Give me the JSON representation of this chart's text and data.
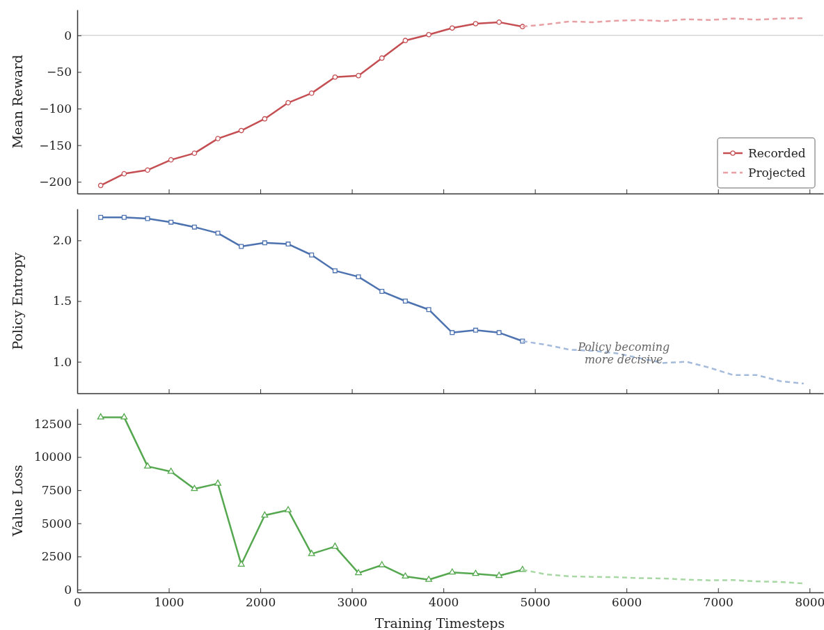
{
  "chart_data": [
    {
      "type": "line",
      "ylabel": "Mean Reward",
      "xlim": [
        0,
        8150
      ],
      "xticks": [
        0,
        1000,
        2000,
        3000,
        4000,
        5000,
        6000,
        7000,
        8000
      ],
      "ylim": [
        -216,
        35
      ],
      "yticks": [
        -200,
        -150,
        -100,
        -50,
        0
      ],
      "tick_labels": "y",
      "legend": "bottom right",
      "grid": false,
      "ref_lines": [
        {
          "axis": "y",
          "value": 0,
          "color": "#c0c0c0"
        }
      ],
      "series": [
        {
          "name": "Recorded",
          "color": "#c44e52",
          "marker": "circle",
          "line_style": "solid",
          "x": [
            256,
            512,
            768,
            1024,
            1280,
            1536,
            1792,
            2048,
            2304,
            2560,
            2816,
            3072,
            3328,
            3584,
            3840,
            4096,
            4352,
            4608,
            4864
          ],
          "values": [
            -205,
            -189,
            -184,
            -170,
            -161,
            -141,
            -130,
            -114,
            -92,
            -79,
            -57,
            -55,
            -31,
            -7,
            1,
            10,
            16,
            18,
            12
          ]
        },
        {
          "name": "Projected",
          "color": "#e8a0a4",
          "marker": "none",
          "line_style": "dashed",
          "x": [
            4864,
            5120,
            5376,
            5632,
            5888,
            6144,
            6400,
            6656,
            6912,
            7168,
            7424,
            7680,
            7936
          ],
          "values": [
            12,
            15,
            19,
            18,
            20,
            21,
            19.5,
            22,
            21,
            23,
            21.5,
            23,
            23.5
          ]
        }
      ]
    },
    {
      "type": "line",
      "ylabel": "Policy Entropy",
      "xlim": [
        0,
        8150
      ],
      "xticks": [
        0,
        1000,
        2000,
        3000,
        4000,
        5000,
        6000,
        7000,
        8000
      ],
      "ylim": [
        0.74,
        2.26
      ],
      "yticks": [
        {
          "value": 1,
          "label": "1.0"
        },
        1.5,
        {
          "value": 2,
          "label": "2.0"
        }
      ],
      "tick_labels": "y",
      "grid": false,
      "annotations": [
        {
          "text": "Policy becoming\nmore decisive",
          "x": 5970,
          "y": 1.04
        }
      ],
      "series": [
        {
          "color": "#4c72b0",
          "marker": "square",
          "line_style": "solid",
          "x": [
            256,
            512,
            768,
            1024,
            1280,
            1536,
            1792,
            2048,
            2304,
            2560,
            2816,
            3072,
            3328,
            3584,
            3840,
            4096,
            4352,
            4608,
            4864
          ],
          "values": [
            2.19,
            2.19,
            2.18,
            2.15,
            2.11,
            2.06,
            1.95,
            1.98,
            1.97,
            1.88,
            1.75,
            1.7,
            1.58,
            1.5,
            1.43,
            1.24,
            1.26,
            1.24,
            1.17
          ]
        },
        {
          "color": "#a5bbdc",
          "marker": "none",
          "line_style": "dashed",
          "x": [
            4864,
            5120,
            5376,
            5632,
            5888,
            6144,
            6400,
            6656,
            6912,
            7168,
            7424,
            7680,
            7936
          ],
          "values": [
            1.17,
            1.14,
            1.1,
            1.09,
            1.07,
            1.03,
            0.99,
            1.0,
            0.95,
            0.89,
            0.89,
            0.84,
            0.82
          ]
        }
      ]
    },
    {
      "type": "line",
      "xlabel": "Training Timesteps",
      "ylabel": "Value Loss",
      "xlim": [
        0,
        8150
      ],
      "xticks": [
        0,
        1000,
        2000,
        3000,
        4000,
        5000,
        6000,
        7000,
        8000
      ],
      "ylim": [
        -210,
        13650
      ],
      "yticks": [
        0,
        2500,
        5000,
        7500,
        10000,
        12500
      ],
      "grid": false,
      "series": [
        {
          "color": "#55a84f",
          "marker": "triangle",
          "line_style": "solid",
          "x": [
            256,
            512,
            768,
            1024,
            1280,
            1536,
            1792,
            2048,
            2304,
            2560,
            2816,
            3072,
            3328,
            3584,
            3840,
            4096,
            4352,
            4608,
            4864
          ],
          "values": [
            13000,
            13000,
            9300,
            8900,
            7600,
            8000,
            1900,
            5600,
            6000,
            2700,
            3250,
            1250,
            1850,
            1000,
            750,
            1300,
            1200,
            1050,
            1500
          ]
        },
        {
          "color": "#a8d8a4",
          "marker": "none",
          "line_style": "dashed",
          "x": [
            4864,
            5120,
            5376,
            5632,
            5888,
            6144,
            6400,
            6656,
            6912,
            7168,
            7424,
            7680,
            7936
          ],
          "values": [
            1500,
            1150,
            1000,
            960,
            940,
            870,
            840,
            760,
            700,
            720,
            620,
            580,
            460
          ]
        }
      ]
    }
  ]
}
